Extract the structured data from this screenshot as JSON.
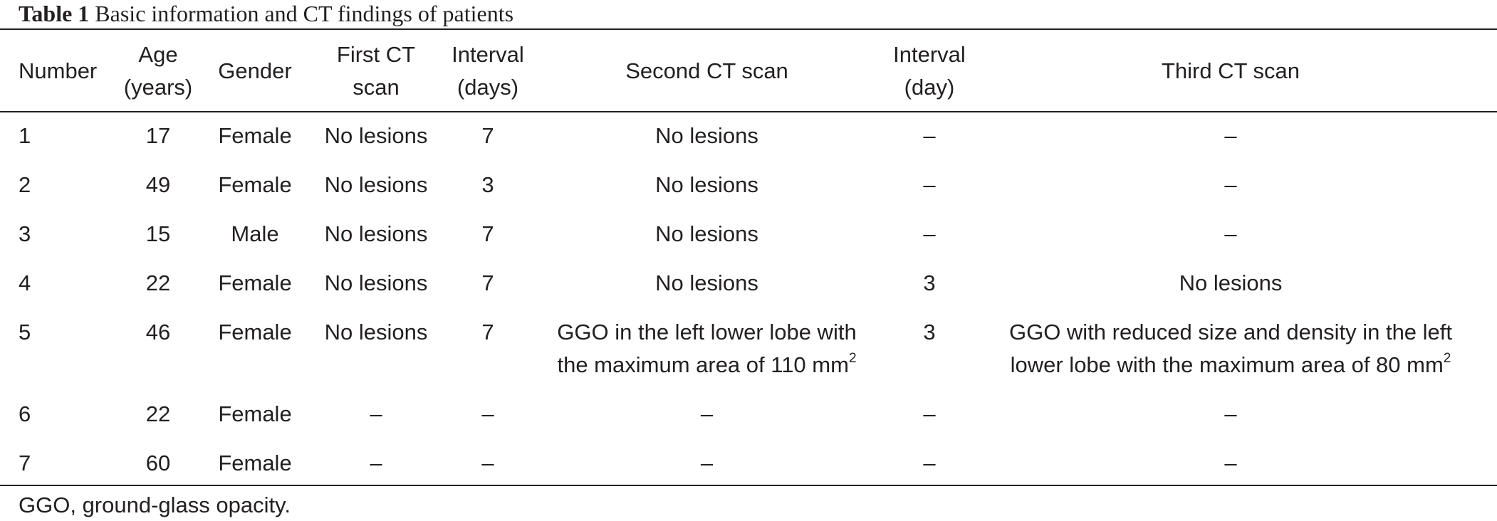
{
  "caption": {
    "label": "Table 1",
    "title": "Basic information and CT findings of patients"
  },
  "headers": {
    "number": [
      "Number"
    ],
    "age": [
      "Age",
      "(years)"
    ],
    "gender": [
      "Gender"
    ],
    "first_ct": [
      "First CT",
      "scan"
    ],
    "interval1": [
      "Interval",
      "(days)"
    ],
    "second_ct": [
      "Second CT scan"
    ],
    "interval2": [
      "Interval",
      "(day)"
    ],
    "third_ct": [
      "Third CT scan"
    ]
  },
  "rows": [
    {
      "number": "1",
      "age": "17",
      "gender": "Female",
      "first_ct": "No lesions",
      "interval1": "7",
      "second_ct": "No lesions",
      "interval2": "–",
      "third_ct": "–"
    },
    {
      "number": "2",
      "age": "49",
      "gender": "Female",
      "first_ct": "No lesions",
      "interval1": "3",
      "second_ct": "No lesions",
      "interval2": "–",
      "third_ct": "–"
    },
    {
      "number": "3",
      "age": "15",
      "gender": "Male",
      "first_ct": "No lesions",
      "interval1": "7",
      "second_ct": "No lesions",
      "interval2": "–",
      "third_ct": "–"
    },
    {
      "number": "4",
      "age": "22",
      "gender": "Female",
      "first_ct": "No lesions",
      "interval1": "7",
      "second_ct": "No lesions",
      "interval2": "3",
      "third_ct": "No lesions"
    },
    {
      "number": "5",
      "age": "46",
      "gender": "Female",
      "first_ct": "No lesions",
      "interval1": "7",
      "second_ct_line1": "GGO in the left lower lobe with",
      "second_ct_line2": "the maximum area of 110 mm",
      "second_ct_sup": "2",
      "interval2": "3",
      "third_ct_line1": "GGO with reduced size and density in the left",
      "third_ct_line2": "lower lobe with the maximum area of 80 mm",
      "third_ct_sup": "2"
    },
    {
      "number": "6",
      "age": "22",
      "gender": "Female",
      "first_ct": "–",
      "interval1": "–",
      "second_ct": "–",
      "interval2": "–",
      "third_ct": "–"
    },
    {
      "number": "7",
      "age": "60",
      "gender": "Female",
      "first_ct": "–",
      "interval1": "–",
      "second_ct": "–",
      "interval2": "–",
      "third_ct": "–"
    }
  ],
  "footnote": "GGO, ground-glass opacity."
}
